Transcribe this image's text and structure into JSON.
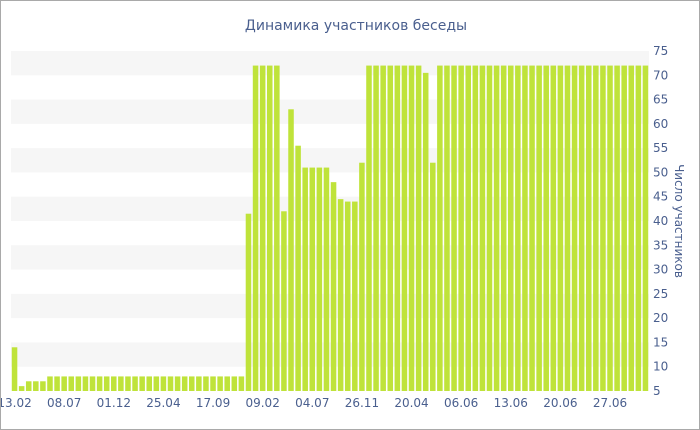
{
  "chart_data": {
    "type": "bar",
    "title": "Динамика участников беседы",
    "xlabel": "",
    "ylabel": "Число участников",
    "ylim": [
      5,
      75
    ],
    "yticks": [
      5,
      10,
      15,
      20,
      25,
      30,
      35,
      40,
      45,
      50,
      55,
      60,
      65,
      70,
      75
    ],
    "grid": "alternating horizontal bands",
    "legend": "none",
    "bar_color": "#bfe33a",
    "band_color": "#f6f6f6",
    "text_color": "#4a5f8e",
    "x_tick_labels": [
      {
        "index": 0,
        "label": "13.02"
      },
      {
        "index": 7,
        "label": "08.07"
      },
      {
        "index": 14,
        "label": "01.12"
      },
      {
        "index": 21,
        "label": "25.04"
      },
      {
        "index": 28,
        "label": "17.09"
      },
      {
        "index": 35,
        "label": "09.02"
      },
      {
        "index": 42,
        "label": "04.07"
      },
      {
        "index": 49,
        "label": "26.11"
      },
      {
        "index": 56,
        "label": "20.04"
      },
      {
        "index": 63,
        "label": "06.06"
      },
      {
        "index": 70,
        "label": "13.06"
      },
      {
        "index": 77,
        "label": "20.06"
      },
      {
        "index": 84,
        "label": "27.06"
      }
    ],
    "values": [
      14,
      6,
      7,
      7,
      7,
      8,
      8,
      8,
      8,
      8,
      8,
      8,
      8,
      8,
      8,
      8,
      8,
      8,
      8,
      8,
      8,
      8,
      8,
      8,
      8,
      8,
      8,
      8,
      8,
      8,
      8,
      8,
      8,
      41.5,
      72,
      72,
      72,
      72,
      42,
      63,
      55.5,
      51,
      51,
      51,
      51,
      48,
      44.5,
      44,
      44,
      52,
      72,
      72,
      72,
      72,
      72,
      72,
      72,
      72,
      70.5,
      52,
      72,
      72,
      72,
      72,
      72,
      72,
      72,
      72,
      72,
      72,
      72,
      72,
      72,
      72,
      72,
      72,
      72,
      72,
      72,
      72,
      72,
      72,
      72,
      72,
      72,
      72,
      72,
      72,
      72,
      72
    ]
  }
}
